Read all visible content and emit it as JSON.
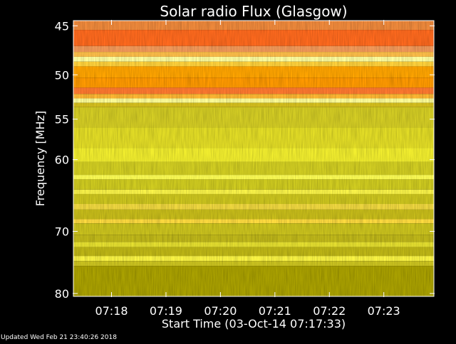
{
  "chart_data": {
    "type": "heatmap",
    "title": "Solar radio Flux (Glasgow)",
    "xlabel": "Start Time (03-Oct-14 07:17:33)",
    "ylabel": "Frequency [MHz]",
    "footer": "Updated Wed Feb 21 23:40:26 2018",
    "x_start": "07:17:33",
    "x_range_minutes": [
      17.3,
      23.92
    ],
    "x_ticks": [
      {
        "label": "07:18",
        "minute": 18
      },
      {
        "label": "07:19",
        "minute": 19
      },
      {
        "label": "07:20",
        "minute": 20
      },
      {
        "label": "07:21",
        "minute": 21
      },
      {
        "label": "07:22",
        "minute": 22
      },
      {
        "label": "07:23",
        "minute": 23
      }
    ],
    "y_scale": "log",
    "y_range": [
      44.5,
      80.5
    ],
    "y_ticks": [
      {
        "label": "45",
        "value": 45
      },
      {
        "label": "50",
        "value": 50
      },
      {
        "label": "55",
        "value": 55
      },
      {
        "label": "60",
        "value": 60
      },
      {
        "label": "70",
        "value": 70
      },
      {
        "label": "80",
        "value": 80
      }
    ],
    "bands": [
      {
        "from": 44.5,
        "to": 45.4,
        "color": "#f08a3c"
      },
      {
        "from": 45.4,
        "to": 47.0,
        "color": "#ff6a1e"
      },
      {
        "from": 47.0,
        "to": 47.6,
        "color": "#f49a5a"
      },
      {
        "from": 47.6,
        "to": 48.1,
        "color": "#ffc04a"
      },
      {
        "from": 48.1,
        "to": 48.6,
        "color": "#ffffa0"
      },
      {
        "from": 48.6,
        "to": 49.1,
        "color": "#ffd23c"
      },
      {
        "from": 49.1,
        "to": 50.3,
        "color": "#ffa500"
      },
      {
        "from": 50.3,
        "to": 51.4,
        "color": "#ff9a00"
      },
      {
        "from": 51.4,
        "to": 52.1,
        "color": "#ff7a30"
      },
      {
        "from": 52.1,
        "to": 52.6,
        "color": "#ffb833"
      },
      {
        "from": 52.6,
        "to": 53.1,
        "color": "#ffff99"
      },
      {
        "from": 53.1,
        "to": 53.6,
        "color": "#d8c21e"
      },
      {
        "from": 53.6,
        "to": 56.0,
        "color": "#d4cd24"
      },
      {
        "from": 56.0,
        "to": 58.5,
        "color": "#e3dd26"
      },
      {
        "from": 58.5,
        "to": 60.3,
        "color": "#f2ee2e"
      },
      {
        "from": 60.3,
        "to": 62.0,
        "color": "#d2ce22"
      },
      {
        "from": 62.0,
        "to": 62.6,
        "color": "#ffff55"
      },
      {
        "from": 62.6,
        "to": 64.0,
        "color": "#d0cc20"
      },
      {
        "from": 64.0,
        "to": 64.6,
        "color": "#fbf54a"
      },
      {
        "from": 64.6,
        "to": 66.0,
        "color": "#ccc51e"
      },
      {
        "from": 66.0,
        "to": 66.8,
        "color": "#f0d840"
      },
      {
        "from": 66.8,
        "to": 68.2,
        "color": "#c8bd1a"
      },
      {
        "from": 68.2,
        "to": 68.8,
        "color": "#ffdc40"
      },
      {
        "from": 68.8,
        "to": 70.5,
        "color": "#ccc41e"
      },
      {
        "from": 70.5,
        "to": 71.6,
        "color": "#c0b81a"
      },
      {
        "from": 71.6,
        "to": 72.4,
        "color": "#e6e030"
      },
      {
        "from": 72.4,
        "to": 73.8,
        "color": "#bfb716"
      },
      {
        "from": 73.8,
        "to": 74.6,
        "color": "#fbf544"
      },
      {
        "from": 74.6,
        "to": 75.4,
        "color": "#cdc520"
      },
      {
        "from": 75.4,
        "to": 80.5,
        "color": "#aaa100"
      }
    ],
    "grid": false,
    "legend": "none"
  }
}
